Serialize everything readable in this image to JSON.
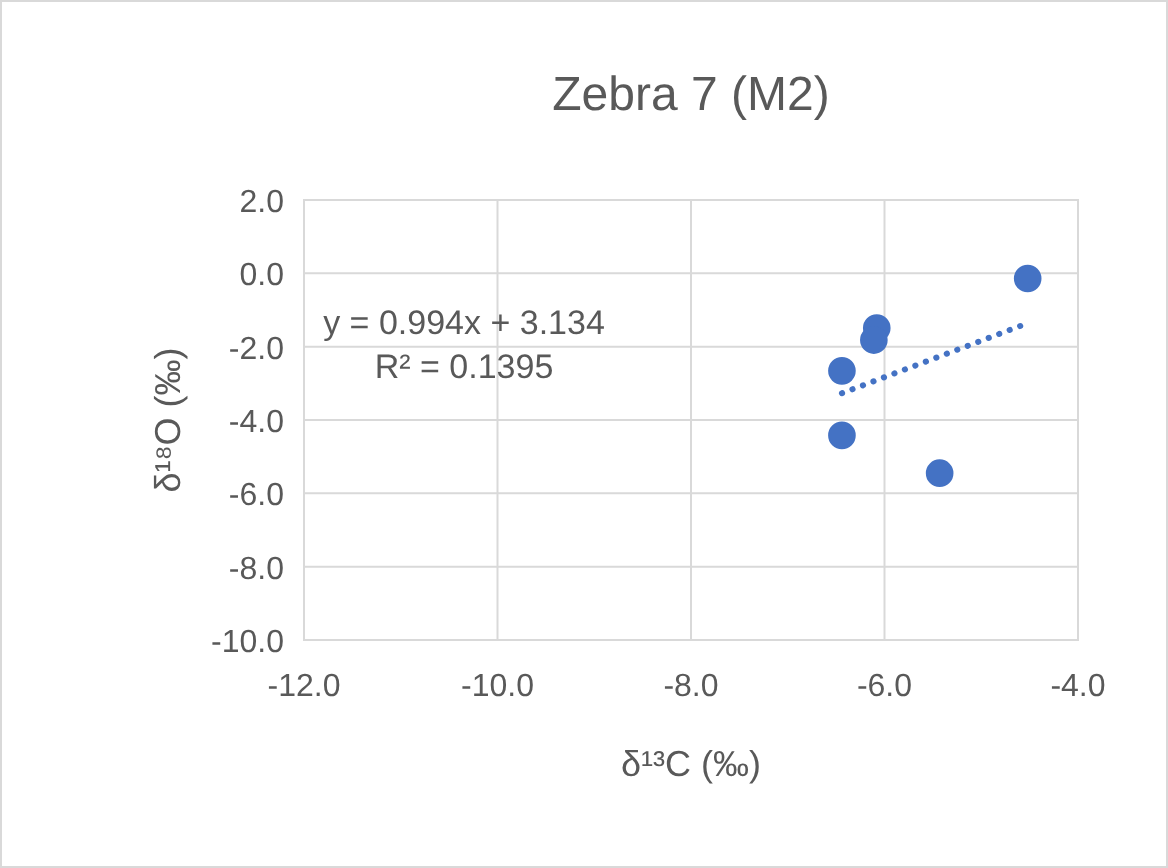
{
  "chart_data": {
    "type": "scatter",
    "title": "Zebra 7 (M2)",
    "xlabel": "δ¹³C (‰)",
    "ylabel": "δ¹⁸O (‰)",
    "xlim": [
      -12,
      -4
    ],
    "xticks": [
      {
        "value": -12,
        "label": "-12.0"
      },
      {
        "value": -10,
        "label": "-10.0"
      },
      {
        "value": -8,
        "label": "-8.0"
      },
      {
        "value": -6,
        "label": "-6.0"
      },
      {
        "value": -4,
        "label": "-4.0"
      }
    ],
    "ylim": [
      -10,
      2
    ],
    "yticks": [
      {
        "value": -10,
        "label": "-10.0"
      },
      {
        "value": -8,
        "label": "-8.0"
      },
      {
        "value": -6,
        "label": "-6.0"
      },
      {
        "value": -4,
        "label": "-4.0"
      },
      {
        "value": -2,
        "label": "-2.0"
      },
      {
        "value": 0,
        "label": "0.0"
      },
      {
        "value": 2,
        "label": "2.0"
      }
    ],
    "grid": true,
    "marker": "circle",
    "series": [
      {
        "color": "#4472c4",
        "x": [
          -4.52,
          -6.08,
          -6.11,
          -6.44,
          -6.44,
          -5.43
        ],
        "values": [
          -0.14,
          -1.49,
          -1.82,
          -2.66,
          -4.42,
          -5.45
        ]
      },
      {
        "type": "line",
        "color": "#4472c4",
        "marker": "none",
        "line_style": "dotted",
        "x": [
          -6.44,
          -4.52
        ],
        "values": [
          -3.27,
          -1.36
        ]
      }
    ],
    "annotations": [
      "y = 0.994x + 3.134",
      "R² = 0.1395"
    ]
  }
}
